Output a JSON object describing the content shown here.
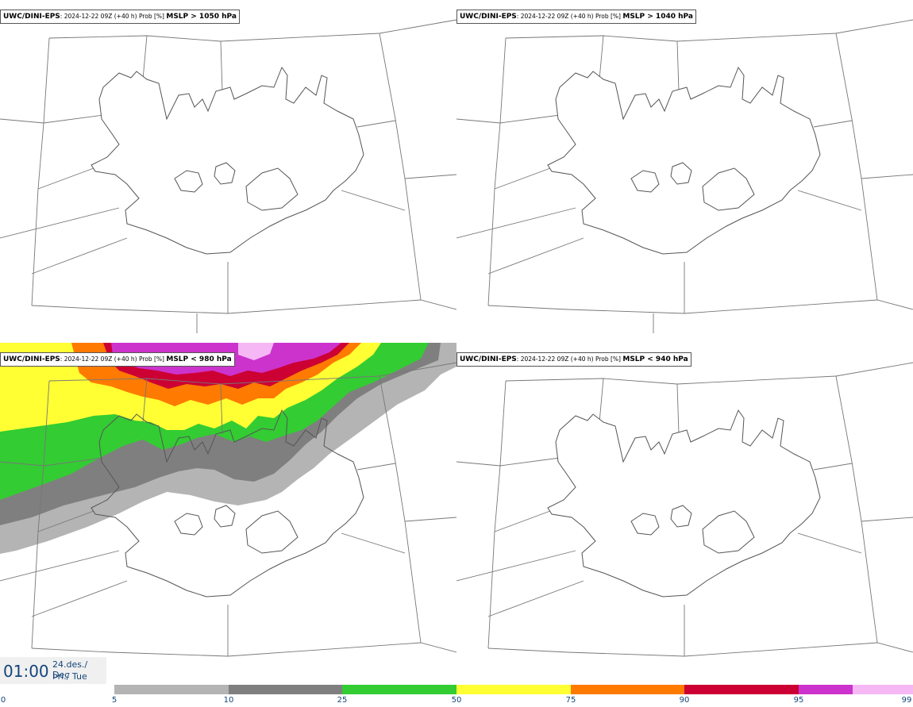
{
  "panels": [
    {
      "title_model": "UWC/DINI-EPS",
      "title_meta": ": 2024-12-22 09Z (+40 h) Prob [%] ",
      "title_field": "MSLP > 1050 hPa"
    },
    {
      "title_model": "UWC/DINI-EPS",
      "title_meta": ": 2024-12-22 09Z (+40 h) Prob [%] ",
      "title_field": "MSLP > 1040 hPa"
    },
    {
      "title_model": "UWC/DINI-EPS",
      "title_meta": ": 2024-12-22 09Z (+40 h) Prob [%] ",
      "title_field": "MSLP < 980 hPa"
    },
    {
      "title_model": "UWC/DINI-EPS",
      "title_meta": ": 2024-12-22 09Z (+40 h) Prob [%] ",
      "title_field": "MSLP < 940 hPa"
    }
  ],
  "time": {
    "clock": "01:00",
    "date_line1": "24.des./ Dec",
    "date_line2": "Þri./ Tue"
  },
  "colorbar": {
    "ticks": [
      "0",
      "5",
      "10",
      "25",
      "50",
      "75",
      "90",
      "95",
      "99"
    ],
    "colors": [
      "#b4b4b4",
      "#7f7f7f",
      "#33cc33",
      "#ffff33",
      "#ff7a00",
      "#cc0033",
      "#cc33cc",
      "#f5b8f5"
    ]
  }
}
